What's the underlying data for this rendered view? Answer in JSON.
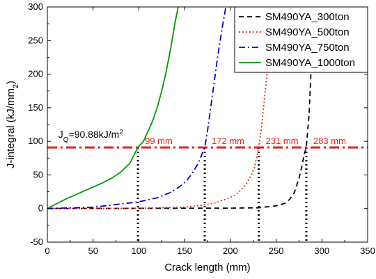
{
  "chart_data": {
    "type": "line",
    "xlabel": "Crack length (mm)",
    "ylabel": "J-integral (kJ/mm",
    "ylabel_sub": "2",
    "ylabel_close": ")",
    "xlim": [
      0,
      350
    ],
    "ylim": [
      -50,
      300
    ],
    "xticks": [
      "0",
      "50",
      "100",
      "150",
      "200",
      "250",
      "300",
      "350"
    ],
    "yticks": [
      "-50",
      "0",
      "50",
      "100",
      "150",
      "200",
      "250",
      "300"
    ],
    "grid": false,
    "legend_position": "top-right",
    "series": [
      {
        "name": "SM490YA_300ton",
        "color": "#000000",
        "style": "dashed",
        "x": [
          0,
          100,
          200,
          230,
          250,
          260,
          265,
          270,
          275,
          278,
          281,
          283,
          286,
          288,
          290
        ],
        "y": [
          0,
          0.3,
          0.6,
          1,
          4,
          8,
          14,
          24,
          45,
          62,
          82,
          91,
          140,
          200,
          250
        ]
      },
      {
        "name": "SM490YA_500ton",
        "color": "#e8221c",
        "style": "dotted",
        "x": [
          0,
          100,
          150,
          170,
          185,
          195,
          205,
          212,
          218,
          223,
          226,
          229,
          231,
          234,
          237,
          240,
          243,
          246
        ],
        "y": [
          0,
          0.4,
          2,
          5,
          9,
          14,
          20,
          28,
          38,
          50,
          60,
          78,
          91,
          120,
          160,
          200,
          250,
          300
        ]
      },
      {
        "name": "SM490YA_750ton",
        "color": "#0000cc",
        "style": "dashdot",
        "x": [
          0,
          50,
          100,
          120,
          135,
          145,
          152,
          158,
          163,
          167,
          170,
          172,
          175,
          178,
          182,
          186,
          190,
          195
        ],
        "y": [
          0,
          2,
          10,
          16,
          24,
          33,
          41,
          52,
          63,
          74,
          85,
          91,
          115,
          145,
          185,
          225,
          260,
          300
        ]
      },
      {
        "name": "SM490YA_1000ton",
        "color": "#009900",
        "style": "solid",
        "x": [
          0,
          10,
          20,
          30,
          40,
          50,
          60,
          70,
          80,
          90,
          99,
          105,
          110,
          115,
          120,
          125,
          130,
          135,
          140,
          143
        ],
        "y": [
          0,
          7,
          14,
          20,
          26,
          32,
          38,
          45,
          54,
          67,
          91,
          100,
          115,
          130,
          150,
          175,
          205,
          240,
          280,
          300
        ]
      }
    ],
    "reference_line": {
      "label": "J",
      "label_sub": "Q",
      "label_rest": "=90.88kJ/m",
      "label_sup": "2",
      "y": 90.88,
      "color": "#e8221c"
    },
    "crack_markers": [
      {
        "x": 99,
        "label": "99 mm"
      },
      {
        "x": 172,
        "label": "172 mm"
      },
      {
        "x": 231,
        "label": "231 mm"
      },
      {
        "x": 283,
        "label": "283 mm"
      }
    ]
  }
}
